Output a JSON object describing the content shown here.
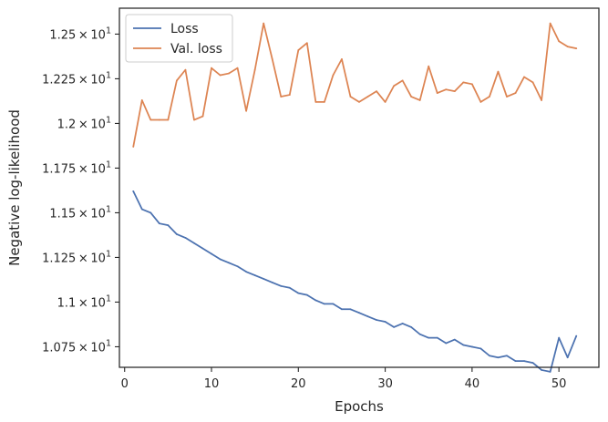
{
  "chart_data": {
    "type": "line",
    "title": "",
    "xlabel": "Epochs",
    "ylabel": "Negative log-likelihood",
    "xlim": [
      -0.6,
      54.6
    ],
    "ylim": [
      10.635,
      12.645
    ],
    "grid": false,
    "legend_position": "upper-left",
    "x_ticks": [
      0,
      10,
      20,
      30,
      40,
      50
    ],
    "x_tick_labels": [
      "0",
      "10",
      "20",
      "30",
      "40",
      "50"
    ],
    "y_ticks": [
      10.75,
      11.0,
      11.25,
      11.5,
      11.75,
      12.0,
      12.25,
      12.5
    ],
    "y_tick_labels": [
      {
        "mantissa": "1.075",
        "exponent": "1"
      },
      {
        "mantissa": "1.1",
        "exponent": "1"
      },
      {
        "mantissa": "1.125",
        "exponent": "1"
      },
      {
        "mantissa": "1.15",
        "exponent": "1"
      },
      {
        "mantissa": "1.175",
        "exponent": "1"
      },
      {
        "mantissa": "1.2",
        "exponent": "1"
      },
      {
        "mantissa": "1.225",
        "exponent": "1"
      },
      {
        "mantissa": "1.25",
        "exponent": "1"
      }
    ],
    "x": [
      1,
      2,
      3,
      4,
      5,
      6,
      7,
      8,
      9,
      10,
      11,
      12,
      13,
      14,
      15,
      16,
      17,
      18,
      19,
      20,
      21,
      22,
      23,
      24,
      25,
      26,
      27,
      28,
      29,
      30,
      31,
      32,
      33,
      34,
      35,
      36,
      37,
      38,
      39,
      40,
      41,
      42,
      43,
      44,
      45,
      46,
      47,
      48,
      49,
      50,
      51,
      52
    ],
    "series": [
      {
        "name": "Loss",
        "color": "#4c72b0",
        "values": [
          11.62,
          11.52,
          11.5,
          11.44,
          11.43,
          11.38,
          11.36,
          11.33,
          11.3,
          11.27,
          11.24,
          11.22,
          11.2,
          11.17,
          11.15,
          11.13,
          11.11,
          11.09,
          11.08,
          11.05,
          11.04,
          11.01,
          10.99,
          10.99,
          10.96,
          10.96,
          10.94,
          10.92,
          10.9,
          10.89,
          10.86,
          10.88,
          10.86,
          10.82,
          10.8,
          10.8,
          10.77,
          10.79,
          10.76,
          10.75,
          10.74,
          10.7,
          10.69,
          10.7,
          10.67,
          10.67,
          10.66,
          10.62,
          10.61,
          10.8,
          10.69,
          10.81
        ]
      },
      {
        "name": "Val. loss",
        "color": "#dd8452",
        "values": [
          11.87,
          12.13,
          12.02,
          12.02,
          12.02,
          12.24,
          12.3,
          12.02,
          12.04,
          12.31,
          12.27,
          12.28,
          12.31,
          12.07,
          12.3,
          12.56,
          12.36,
          12.15,
          12.16,
          12.41,
          12.45,
          12.12,
          12.12,
          12.27,
          12.36,
          12.15,
          12.12,
          12.15,
          12.18,
          12.12,
          12.21,
          12.24,
          12.15,
          12.13,
          12.32,
          12.17,
          12.19,
          12.18,
          12.23,
          12.22,
          12.12,
          12.15,
          12.29,
          12.15,
          12.17,
          12.26,
          12.23,
          12.13,
          12.56,
          12.46,
          12.43,
          12.42
        ]
      }
    ]
  }
}
